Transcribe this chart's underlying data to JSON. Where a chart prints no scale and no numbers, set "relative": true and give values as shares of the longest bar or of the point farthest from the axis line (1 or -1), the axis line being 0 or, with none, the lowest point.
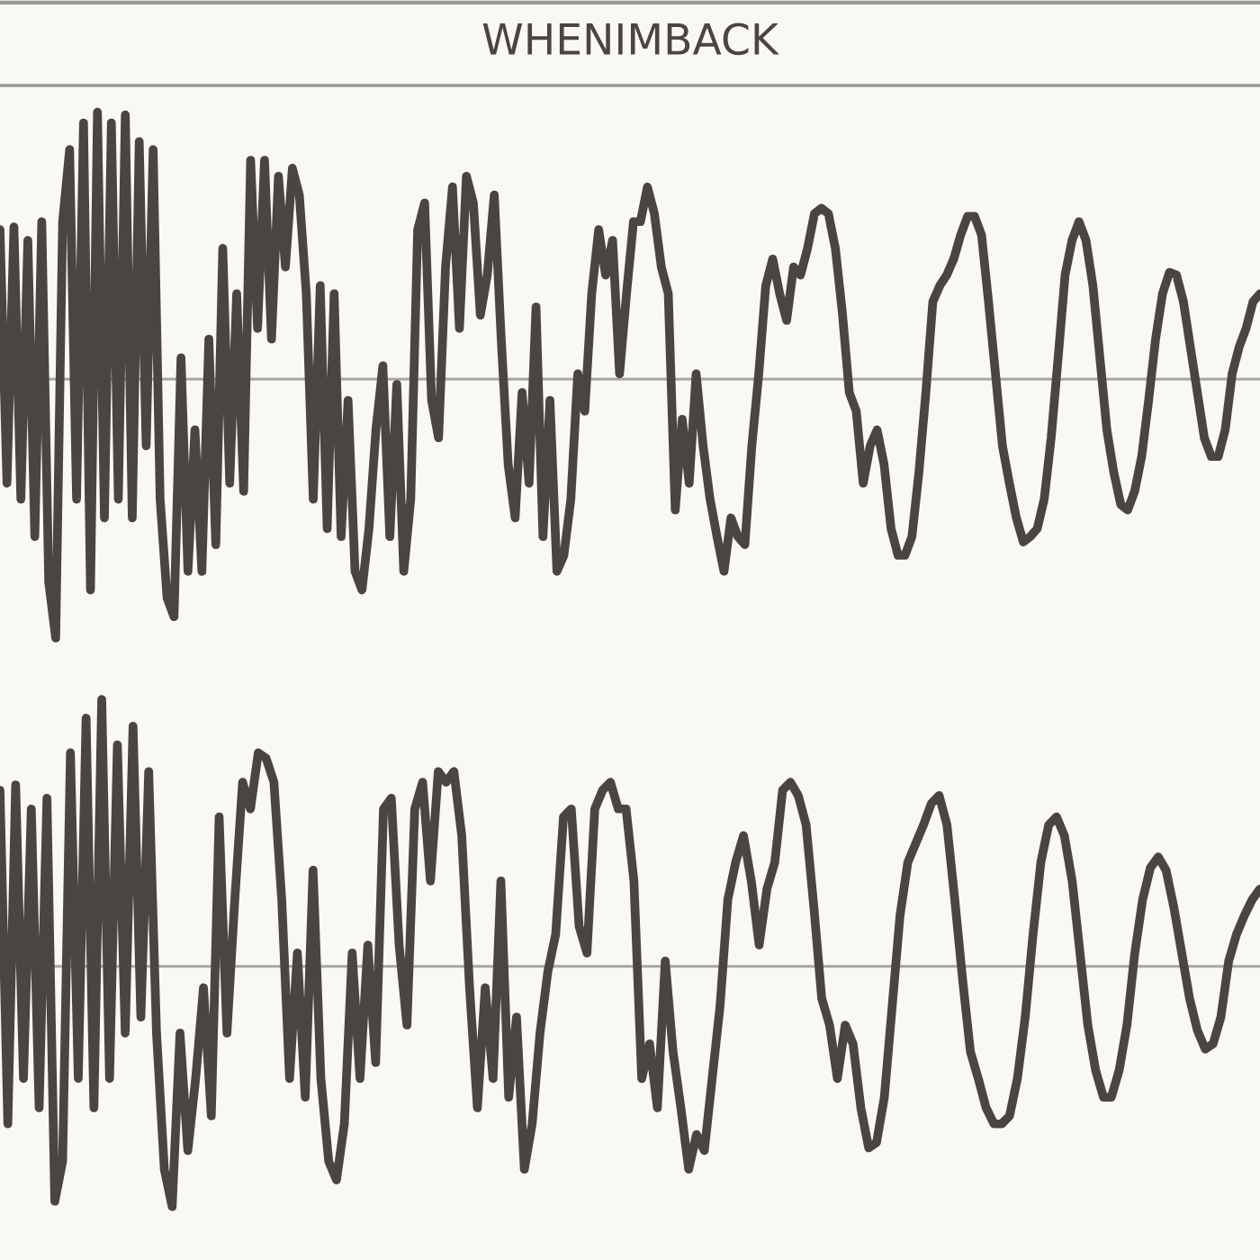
{
  "chart_data": [
    {
      "type": "line",
      "title": "WHENIMBACK",
      "relative": true,
      "color": "#4a4542",
      "categories": [
        null,
        null,
        null,
        null,
        null,
        null,
        null,
        null,
        null,
        null,
        null,
        null,
        null,
        null,
        null,
        null,
        null,
        null,
        null,
        null,
        null,
        null,
        null,
        null,
        null,
        null,
        null,
        null,
        null,
        null,
        null,
        null,
        null,
        null,
        null,
        null,
        null,
        null,
        null,
        null,
        null,
        null,
        null,
        null,
        null,
        null,
        null,
        null,
        null,
        null,
        null,
        null,
        null,
        null,
        null,
        null,
        null,
        null,
        null,
        null,
        null,
        null,
        null,
        null,
        null,
        null,
        null,
        null,
        null,
        null,
        null,
        null,
        null,
        null,
        null,
        null,
        null,
        null,
        null,
        null,
        null,
        null,
        null,
        null,
        null,
        null,
        null,
        null,
        null,
        null,
        null,
        null,
        null,
        null,
        null,
        null,
        null,
        null,
        null,
        null,
        null,
        null,
        null,
        null,
        null,
        null,
        null,
        null,
        null,
        null,
        null,
        null,
        null,
        null,
        null,
        null,
        null,
        null,
        null,
        null,
        null,
        null,
        null,
        null,
        null,
        null,
        null,
        null,
        null,
        null,
        null,
        null,
        null,
        null,
        null,
        null,
        null,
        null,
        null,
        null,
        null,
        null,
        null,
        null,
        null,
        null,
        null,
        null,
        null,
        null,
        null,
        null,
        null,
        null,
        null,
        null,
        null,
        null,
        null,
        null,
        null,
        null,
        null,
        null,
        null,
        null,
        null,
        null,
        null,
        null,
        null,
        null,
        null,
        null,
        null,
        null,
        null,
        null,
        null,
        null,
        null,
        null
      ],
      "values": [
        0.56,
        -0.39,
        0.57,
        -0.45,
        0.52,
        -0.59,
        0.59,
        -0.76,
        -0.97,
        0.59,
        0.86,
        -0.45,
        0.96,
        -0.79,
        1.0,
        -0.52,
        0.96,
        -0.45,
        0.99,
        -0.52,
        0.89,
        -0.25,
        0.86,
        -0.45,
        -0.82,
        -0.89,
        0.08,
        -0.72,
        -0.19,
        -0.72,
        0.15,
        -0.62,
        0.49,
        -0.39,
        0.32,
        -0.42,
        0.82,
        0.19,
        0.82,
        0.15,
        0.76,
        0.42,
        0.79,
        0.69,
        0.32,
        -0.45,
        0.35,
        -0.56,
        0.32,
        -0.59,
        -0.08,
        -0.72,
        -0.79,
        -0.56,
        -0.19,
        0.05,
        -0.59,
        -0.02,
        -0.72,
        -0.45,
        0.56,
        0.66,
        -0.08,
        -0.22,
        0.42,
        0.72,
        0.19,
        0.76,
        0.66,
        0.24,
        0.39,
        0.69,
        0.15,
        -0.32,
        -0.52,
        -0.05,
        -0.39,
        0.27,
        -0.59,
        -0.08,
        -0.72,
        -0.66,
        -0.45,
        0.02,
        -0.12,
        0.32,
        0.56,
        0.39,
        0.52,
        0.02,
        0.32,
        0.59,
        0.59,
        0.72,
        0.62,
        0.42,
        0.32,
        -0.49,
        -0.15,
        -0.39,
        0.02,
        -0.25,
        -0.45,
        -0.59,
        -0.72,
        -0.52,
        -0.59,
        -0.62,
        -0.25,
        0.02,
        0.35,
        0.45,
        0.32,
        0.22,
        0.42,
        0.39,
        0.49,
        0.62,
        0.64,
        0.62,
        0.49,
        0.25,
        -0.05,
        -0.12,
        -0.39,
        -0.25,
        -0.19,
        -0.32,
        -0.56,
        -0.66,
        -0.66,
        -0.59,
        -0.35,
        -0.05,
        0.29,
        0.35,
        0.39,
        0.45,
        0.54,
        0.61,
        0.61,
        0.54,
        0.29,
        0.02,
        -0.25,
        -0.39,
        -0.52,
        -0.61,
        -0.59,
        -0.56,
        -0.45,
        -0.22,
        0.08,
        0.39,
        0.52,
        0.59,
        0.52,
        0.35,
        0.08,
        -0.19,
        -0.35,
        -0.47,
        -0.49,
        -0.42,
        -0.29,
        -0.08,
        0.15,
        0.32,
        0.4,
        0.39,
        0.29,
        0.12,
        -0.05,
        -0.22,
        -0.29,
        -0.29,
        -0.19,
        0.02,
        0.12,
        0.19,
        0.29,
        0.32
      ]
    },
    {
      "type": "line",
      "relative": true,
      "color": "#4a4542",
      "categories": [
        null,
        null,
        null,
        null,
        null,
        null,
        null,
        null,
        null,
        null,
        null,
        null,
        null,
        null,
        null,
        null,
        null,
        null,
        null,
        null,
        null,
        null,
        null,
        null,
        null,
        null,
        null,
        null,
        null,
        null,
        null,
        null,
        null,
        null,
        null,
        null,
        null,
        null,
        null,
        null,
        null,
        null,
        null,
        null,
        null,
        null,
        null,
        null,
        null,
        null,
        null,
        null,
        null,
        null,
        null,
        null,
        null,
        null,
        null,
        null,
        null,
        null,
        null,
        null,
        null,
        null,
        null,
        null,
        null,
        null,
        null,
        null,
        null,
        null,
        null,
        null,
        null,
        null,
        null,
        null,
        null,
        null,
        null,
        null,
        null,
        null,
        null,
        null,
        null,
        null,
        null,
        null,
        null,
        null,
        null,
        null,
        null,
        null,
        null,
        null,
        null,
        null,
        null,
        null,
        null,
        null,
        null,
        null,
        null,
        null,
        null,
        null,
        null,
        null,
        null,
        null,
        null,
        null,
        null,
        null,
        null,
        null,
        null,
        null,
        null,
        null,
        null,
        null,
        null,
        null,
        null,
        null,
        null,
        null,
        null,
        null,
        null,
        null,
        null,
        null,
        null,
        null,
        null,
        null,
        null,
        null,
        null,
        null,
        null,
        null,
        null,
        null,
        null,
        null,
        null,
        null,
        null,
        null,
        null,
        null,
        null,
        null
      ],
      "values": [
        0.66,
        -0.59,
        0.68,
        -0.42,
        0.59,
        -0.53,
        0.63,
        -0.88,
        -0.73,
        0.8,
        -0.42,
        0.93,
        -0.53,
        1.0,
        -0.42,
        0.83,
        -0.25,
        0.9,
        -0.19,
        0.73,
        -0.25,
        -0.76,
        -0.9,
        -0.25,
        -0.69,
        -0.42,
        -0.08,
        -0.56,
        0.56,
        -0.25,
        0.25,
        0.69,
        0.59,
        0.8,
        0.78,
        0.69,
        0.25,
        -0.42,
        0.05,
        -0.49,
        0.36,
        -0.42,
        -0.73,
        -0.8,
        -0.59,
        0.05,
        -0.42,
        0.08,
        -0.36,
        0.59,
        0.63,
        0.08,
        -0.22,
        0.59,
        0.69,
        0.32,
        0.73,
        0.69,
        0.73,
        0.49,
        -0.08,
        -0.53,
        -0.08,
        -0.42,
        0.32,
        -0.49,
        -0.19,
        -0.76,
        -0.59,
        -0.25,
        -0.02,
        0.12,
        0.56,
        0.59,
        0.15,
        0.05,
        0.59,
        0.66,
        0.69,
        0.59,
        0.59,
        0.32,
        -0.42,
        -0.29,
        -0.53,
        0.02,
        -0.32,
        -0.53,
        -0.76,
        -0.63,
        -0.69,
        -0.42,
        -0.15,
        0.25,
        0.39,
        0.49,
        0.32,
        0.08,
        0.29,
        0.39,
        0.66,
        0.69,
        0.64,
        0.53,
        0.22,
        -0.12,
        -0.22,
        -0.42,
        -0.22,
        -0.29,
        -0.53,
        -0.68,
        -0.66,
        -0.49,
        -0.15,
        0.19,
        0.39,
        0.46,
        0.53,
        0.61,
        0.64,
        0.53,
        0.25,
        -0.05,
        -0.32,
        -0.42,
        -0.53,
        -0.59,
        -0.59,
        -0.56,
        -0.42,
        -0.19,
        0.12,
        0.39,
        0.53,
        0.56,
        0.49,
        0.32,
        0.05,
        -0.22,
        -0.39,
        -0.49,
        -0.49,
        -0.39,
        -0.22,
        0.05,
        0.25,
        0.37,
        0.41,
        0.36,
        0.22,
        0.05,
        -0.12,
        -0.24,
        -0.31,
        -0.29,
        -0.19,
        0.02,
        0.12,
        0.19,
        0.25,
        0.29
      ]
    }
  ]
}
